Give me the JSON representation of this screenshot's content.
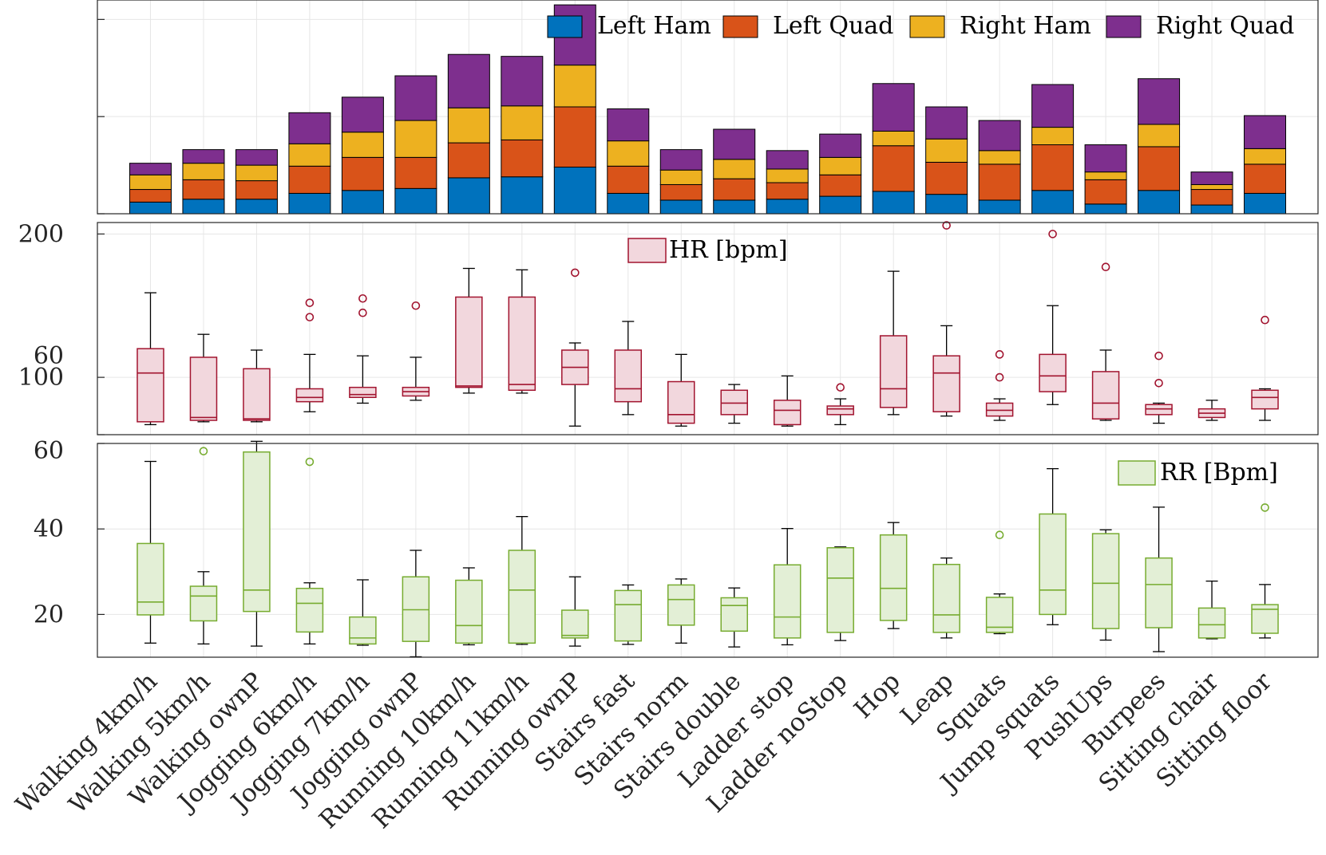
{
  "categories": [
    "Walking 4km/h",
    "Walking 5km/h",
    "Walking ownP",
    "Jogging 6km/h",
    "Jogging 7km/h",
    "Jogging ownP",
    "Running 10km/h",
    "Running 11km/h",
    "Running ownP",
    "Stairs fast",
    "Stairs norm",
    "Stairs double",
    "Ladder stop",
    "Ladder noStop",
    "Hop",
    "Leap",
    "Squats",
    "Jump squats",
    "PushUps",
    "Burpees",
    "Sitting chair",
    "Sitting floor"
  ],
  "chart_data": [
    {
      "type": "bar",
      "stacked": true,
      "title": "",
      "ylabel": "",
      "ylim": [
        0,
        2.2
      ],
      "yticks": [
        0,
        1,
        2
      ],
      "yticklabels_visible": false,
      "legend": "top-right",
      "colors": [
        "#0072BD",
        "#D95319",
        "#EDB120",
        "#7E2F8E"
      ],
      "series": [
        {
          "name": "Left Ham",
          "values": [
            0.12,
            0.15,
            0.15,
            0.21,
            0.24,
            0.26,
            0.37,
            0.38,
            0.48,
            0.21,
            0.14,
            0.14,
            0.15,
            0.18,
            0.23,
            0.2,
            0.14,
            0.24,
            0.1,
            0.24,
            0.09,
            0.21
          ]
        },
        {
          "name": "Left Quad",
          "values": [
            0.13,
            0.2,
            0.19,
            0.28,
            0.34,
            0.32,
            0.36,
            0.38,
            0.62,
            0.28,
            0.16,
            0.22,
            0.17,
            0.22,
            0.47,
            0.33,
            0.37,
            0.47,
            0.25,
            0.45,
            0.16,
            0.3
          ]
        },
        {
          "name": "Right Ham",
          "values": [
            0.15,
            0.17,
            0.16,
            0.23,
            0.26,
            0.38,
            0.36,
            0.35,
            0.43,
            0.26,
            0.15,
            0.2,
            0.14,
            0.18,
            0.15,
            0.24,
            0.14,
            0.18,
            0.08,
            0.23,
            0.05,
            0.16
          ]
        },
        {
          "name": "Right Quad",
          "values": [
            0.12,
            0.14,
            0.16,
            0.32,
            0.36,
            0.46,
            0.55,
            0.51,
            0.62,
            0.33,
            0.21,
            0.31,
            0.19,
            0.24,
            0.49,
            0.33,
            0.31,
            0.44,
            0.28,
            0.47,
            0.13,
            0.34
          ]
        }
      ]
    },
    {
      "type": "box",
      "legend": "HR [bpm]",
      "ylim": [
        60,
        208
      ],
      "yticks": [
        60,
        100,
        200
      ],
      "color": "#A2142F",
      "fill": "#F2D7DD",
      "boxes": [
        {
          "lo": 67,
          "q1": 69,
          "median": 103,
          "q3": 120,
          "hi": 159,
          "outliers": []
        },
        {
          "lo": 69,
          "q1": 70,
          "median": 72,
          "q3": 114,
          "hi": 130,
          "outliers": []
        },
        {
          "lo": 69,
          "q1": 70,
          "median": 71,
          "q3": 106,
          "hi": 119,
          "outliers": []
        },
        {
          "lo": 76,
          "q1": 83,
          "median": 86,
          "q3": 92,
          "hi": 116,
          "outliers": [
            152,
            142
          ]
        },
        {
          "lo": 82,
          "q1": 86,
          "median": 88,
          "q3": 93,
          "hi": 115,
          "outliers": [
            155,
            145
          ]
        },
        {
          "lo": 84,
          "q1": 87,
          "median": 90,
          "q3": 93,
          "hi": 114,
          "outliers": [
            150
          ]
        },
        {
          "lo": 89,
          "q1": 93,
          "median": 94,
          "q3": 156,
          "hi": 176,
          "outliers": []
        },
        {
          "lo": 89,
          "q1": 91,
          "median": 95,
          "q3": 156,
          "hi": 175,
          "outliers": []
        },
        {
          "lo": 66,
          "q1": 95,
          "median": 107,
          "q3": 119,
          "hi": 124,
          "outliers": [
            173
          ]
        },
        {
          "lo": 74,
          "q1": 83,
          "median": 92,
          "q3": 119,
          "hi": 139,
          "outliers": []
        },
        {
          "lo": 66,
          "q1": 68,
          "median": 74,
          "q3": 97,
          "hi": 116,
          "outliers": []
        },
        {
          "lo": 68,
          "q1": 74,
          "median": 82,
          "q3": 91,
          "hi": 95,
          "outliers": []
        },
        {
          "lo": 66,
          "q1": 67,
          "median": 77,
          "q3": 84,
          "hi": 101,
          "outliers": []
        },
        {
          "lo": 67,
          "q1": 74,
          "median": 78,
          "q3": 80,
          "hi": 85,
          "outliers": [
            93
          ]
        },
        {
          "lo": 74,
          "q1": 79,
          "median": 92,
          "q3": 129,
          "hi": 174,
          "outliers": []
        },
        {
          "lo": 73,
          "q1": 76,
          "median": 103,
          "q3": 115,
          "hi": 136,
          "outliers": [
            206
          ]
        },
        {
          "lo": 70,
          "q1": 73,
          "median": 77,
          "q3": 82,
          "hi": 85,
          "outliers": [
            116,
            100
          ]
        },
        {
          "lo": 81,
          "q1": 90,
          "median": 101,
          "q3": 116,
          "hi": 150,
          "outliers": [
            200
          ]
        },
        {
          "lo": 70,
          "q1": 71,
          "median": 82,
          "q3": 104,
          "hi": 119,
          "outliers": [
            177
          ]
        },
        {
          "lo": 68,
          "q1": 74,
          "median": 78,
          "q3": 81,
          "hi": 82,
          "outliers": [
            115,
            96
          ]
        },
        {
          "lo": 70,
          "q1": 72,
          "median": 75,
          "q3": 78,
          "hi": 84,
          "outliers": []
        },
        {
          "lo": 70,
          "q1": 78,
          "median": 86,
          "q3": 91,
          "hi": 92,
          "outliers": [
            140
          ]
        }
      ]
    },
    {
      "type": "box",
      "legend": "RR [Bpm]",
      "ylim": [
        10,
        60
      ],
      "yticks": [
        20,
        40,
        60
      ],
      "color": "#77AC30",
      "fill": "#E3EFD6",
      "boxes": [
        {
          "lo": 13.3,
          "q1": 19.9,
          "median": 22.9,
          "q3": 36.6,
          "hi": 55.8,
          "outliers": []
        },
        {
          "lo": 13.1,
          "q1": 18.5,
          "median": 24.3,
          "q3": 26.6,
          "hi": 30.0,
          "outliers": [
            58.2
          ]
        },
        {
          "lo": 12.6,
          "q1": 20.7,
          "median": 25.7,
          "q3": 58.0,
          "hi": 60.5,
          "outliers": []
        },
        {
          "lo": 13.1,
          "q1": 15.9,
          "median": 22.6,
          "q3": 26.1,
          "hi": 27.4,
          "outliers": [
            55.7
          ]
        },
        {
          "lo": 12.8,
          "q1": 13.1,
          "median": 14.5,
          "q3": 19.4,
          "hi": 28.1,
          "outliers": []
        },
        {
          "lo": 10.1,
          "q1": 13.7,
          "median": 21.1,
          "q3": 28.8,
          "hi": 35.0,
          "outliers": []
        },
        {
          "lo": 12.9,
          "q1": 13.3,
          "median": 17.4,
          "q3": 28.0,
          "hi": 30.9,
          "outliers": []
        },
        {
          "lo": 13.0,
          "q1": 13.3,
          "median": 25.7,
          "q3": 35.0,
          "hi": 42.9,
          "outliers": []
        },
        {
          "lo": 12.6,
          "q1": 14.5,
          "median": 15.1,
          "q3": 21.0,
          "hi": 28.8,
          "outliers": []
        },
        {
          "lo": 13.0,
          "q1": 13.8,
          "median": 22.3,
          "q3": 25.6,
          "hi": 26.9,
          "outliers": []
        },
        {
          "lo": 13.3,
          "q1": 17.5,
          "median": 23.5,
          "q3": 26.9,
          "hi": 28.3,
          "outliers": []
        },
        {
          "lo": 12.4,
          "q1": 16.1,
          "median": 22.1,
          "q3": 23.9,
          "hi": 26.2,
          "outliers": []
        },
        {
          "lo": 12.9,
          "q1": 14.5,
          "median": 19.4,
          "q3": 31.6,
          "hi": 40.1,
          "outliers": []
        },
        {
          "lo": 13.9,
          "q1": 15.8,
          "median": 28.5,
          "q3": 35.6,
          "hi": 35.8,
          "outliers": []
        },
        {
          "lo": 16.7,
          "q1": 18.6,
          "median": 26.1,
          "q3": 38.6,
          "hi": 41.5,
          "outliers": []
        },
        {
          "lo": 14.5,
          "q1": 15.8,
          "median": 19.9,
          "q3": 31.7,
          "hi": 33.2,
          "outliers": []
        },
        {
          "lo": 15.5,
          "q1": 15.8,
          "median": 17.0,
          "q3": 24.0,
          "hi": 24.8,
          "outliers": [
            38.6
          ]
        },
        {
          "lo": 17.6,
          "q1": 20.0,
          "median": 25.7,
          "q3": 43.5,
          "hi": 54.1,
          "outliers": []
        },
        {
          "lo": 14.0,
          "q1": 16.7,
          "median": 27.3,
          "q3": 38.9,
          "hi": 39.8,
          "outliers": []
        },
        {
          "lo": 11.3,
          "q1": 16.9,
          "median": 27.0,
          "q3": 33.2,
          "hi": 45.1,
          "outliers": []
        },
        {
          "lo": 14.3,
          "q1": 14.5,
          "median": 17.6,
          "q3": 21.5,
          "hi": 27.8,
          "outliers": []
        },
        {
          "lo": 14.5,
          "q1": 15.6,
          "median": 21.2,
          "q3": 22.3,
          "hi": 27.0,
          "outliers": [
            45.0
          ]
        }
      ]
    }
  ]
}
